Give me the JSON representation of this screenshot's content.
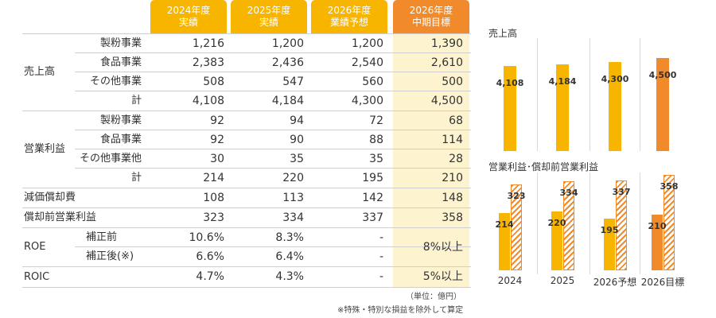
{
  "table": {
    "headers": [
      {
        "line1": "2024年度",
        "line2": "実績"
      },
      {
        "line1": "2025年度",
        "line2": "実績"
      },
      {
        "line1": "2026年度",
        "line2": "業績予想"
      },
      {
        "line1": "2026年度",
        "line2": "中期目標"
      }
    ],
    "rows": [
      {
        "group": "売上高",
        "label": "製粉事業",
        "values": [
          "1,216",
          "1,200",
          "1,200",
          "1,390"
        ]
      },
      {
        "group": "",
        "label": "食品事業",
        "values": [
          "2,383",
          "2,436",
          "2,540",
          "2,610"
        ]
      },
      {
        "group": "",
        "label": "その他事業",
        "values": [
          "508",
          "547",
          "560",
          "500"
        ]
      },
      {
        "group": "",
        "label": "計",
        "values": [
          "4,108",
          "4,184",
          "4,300",
          "4,500"
        ]
      },
      {
        "group": "営業利益",
        "label": "製粉事業",
        "values": [
          "92",
          "94",
          "72",
          "68"
        ]
      },
      {
        "group": "",
        "label": "食品事業",
        "values": [
          "92",
          "90",
          "88",
          "114"
        ]
      },
      {
        "group": "",
        "label": "その他事業他",
        "values": [
          "30",
          "35",
          "35",
          "28"
        ]
      },
      {
        "group": "",
        "label": "計",
        "values": [
          "214",
          "220",
          "195",
          "210"
        ]
      },
      {
        "group": "減価償却費",
        "label": "",
        "values": [
          "108",
          "113",
          "142",
          "148"
        ]
      },
      {
        "group": "償却前営業利益",
        "label": "",
        "values": [
          "323",
          "334",
          "337",
          "358"
        ]
      },
      {
        "group": "ROE",
        "label": "補正前",
        "values": [
          "10.6%",
          "8.3%",
          "-",
          ""
        ]
      },
      {
        "group": "",
        "label": "補正後(※)",
        "values": [
          "6.6%",
          "6.4%",
          "-",
          ""
        ]
      },
      {
        "group": "ROIC",
        "label": "",
        "values": [
          "4.7%",
          "4.3%",
          "-",
          "5%以上"
        ]
      }
    ],
    "roe_target": "8%以上",
    "unit_note": "（単位：億円）",
    "footnote": "※特殊・特別な損益を除外して算定"
  },
  "chart_data": [
    {
      "type": "bar",
      "title": "売上高",
      "categories": [
        "2024",
        "2025",
        "2026予想",
        "2026目標"
      ],
      "values": [
        4108,
        4184,
        4300,
        4500
      ],
      "labels": [
        "4,108",
        "4,184",
        "4,300",
        "4,500"
      ],
      "colors": [
        "#f7b500",
        "#f7b500",
        "#f7b500",
        "#f08a2a"
      ],
      "ylim": [
        0,
        4500
      ]
    },
    {
      "type": "bar",
      "title": "営業利益･償却前営業利益",
      "categories": [
        "2024",
        "2025",
        "2026予想",
        "2026目標"
      ],
      "series": [
        {
          "values": [
            214,
            220,
            195,
            210
          ]
        },
        {
          "values": [
            323,
            334,
            337,
            358
          ]
        }
      ],
      "ylim": [
        0,
        358
      ]
    }
  ],
  "colors": {
    "accent": "#f7b500",
    "target": "#f08a2a",
    "target_bg": "#fdf3cf"
  }
}
